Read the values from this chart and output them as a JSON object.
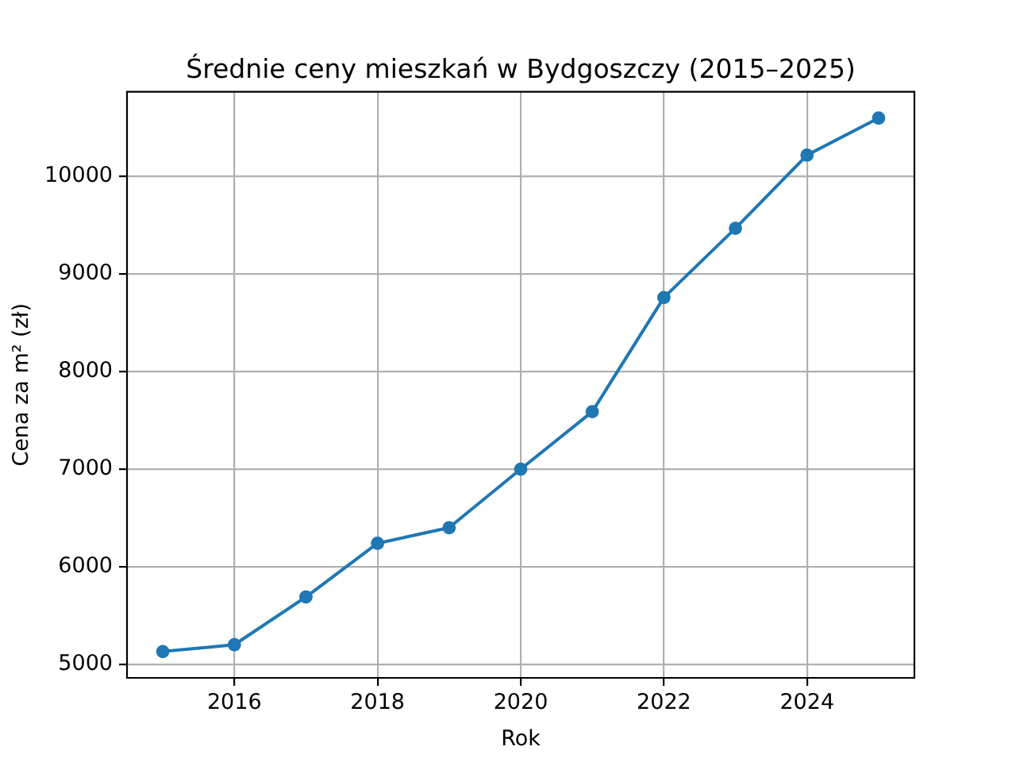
{
  "chart_data": {
    "type": "line",
    "title": "Średnie ceny mieszkań w Bydgoszczy (2015–2025)",
    "xlabel": "Rok",
    "ylabel": "Cena za m² (zł)",
    "x": [
      2015,
      2016,
      2017,
      2018,
      2019,
      2020,
      2021,
      2022,
      2023,
      2024,
      2025
    ],
    "series": [
      {
        "color": "#1f77b4",
        "values": [
          5130,
          5200,
          5690,
          6240,
          6400,
          7000,
          7590,
          8760,
          9470,
          10220,
          10600
        ]
      }
    ],
    "xlim": [
      2014.5,
      2025.5
    ],
    "xticks": [
      2016,
      2018,
      2020,
      2022,
      2024
    ],
    "ylim": [
      4860,
      10870
    ],
    "yticks": [
      5000,
      6000,
      7000,
      8000,
      9000,
      10000
    ],
    "grid": true,
    "marker": "circle",
    "line_style": "solid"
  }
}
